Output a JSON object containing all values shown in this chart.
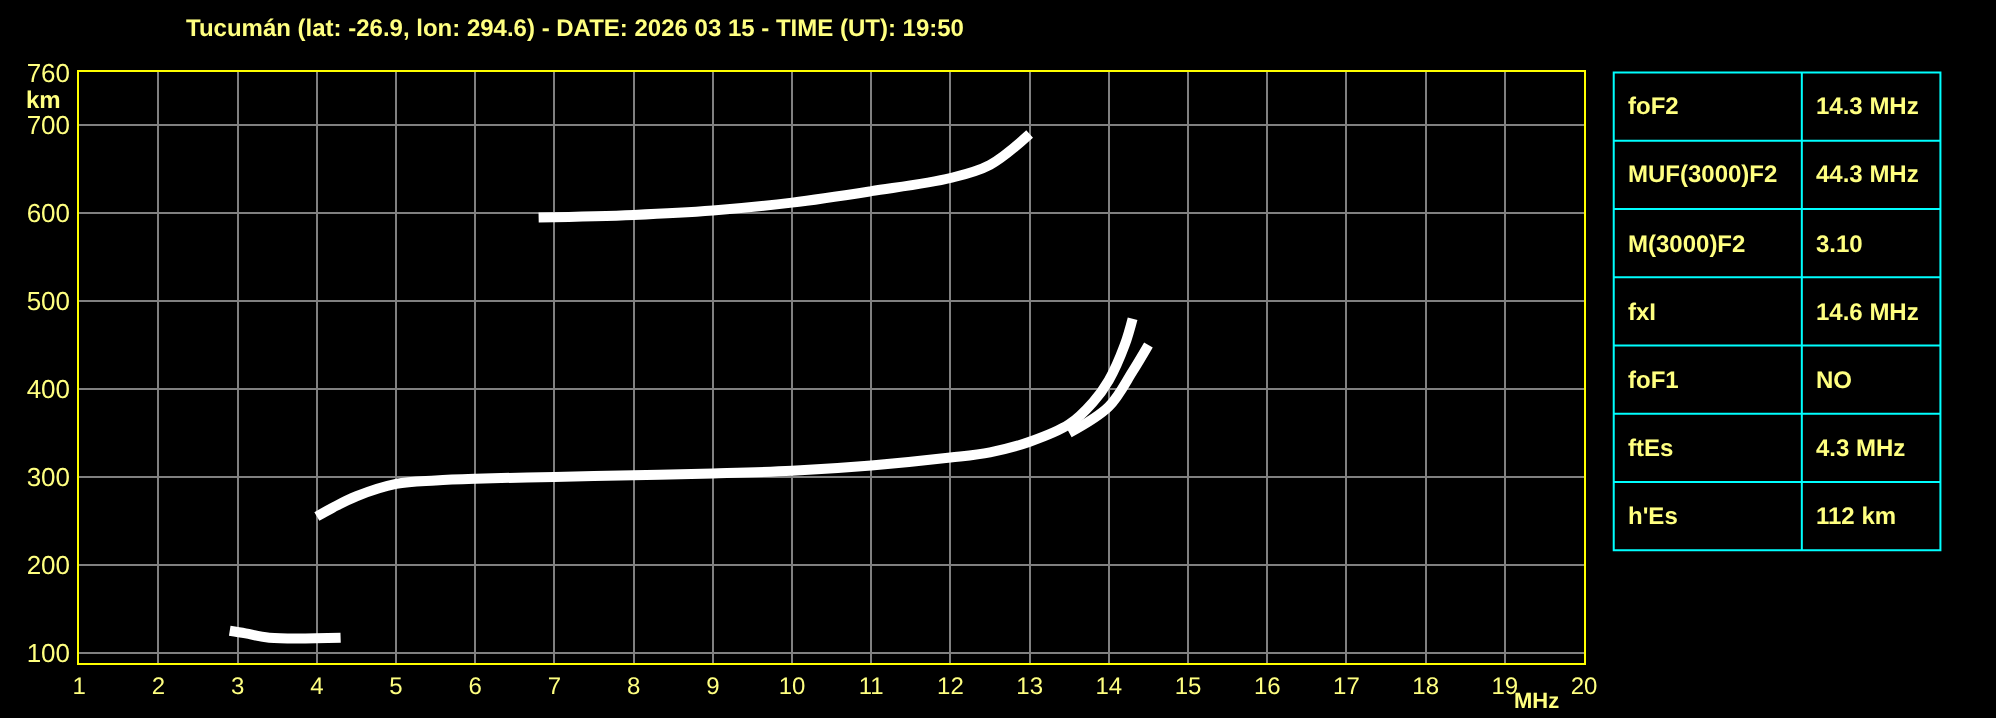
{
  "chart_data": [
    {
      "type": "line",
      "title": "Tucumán (lat: -26.9, lon: 294.6) - DATE: 2026 03 15 - TIME (UT): 19:50",
      "xlabel": "MHz",
      "ylabel": "km",
      "xlim": [
        1,
        20
      ],
      "xticks": [
        1,
        2,
        3,
        4,
        5,
        6,
        7,
        8,
        9,
        10,
        11,
        12,
        13,
        14,
        15,
        16,
        17,
        18,
        19,
        20
      ],
      "ylim": [
        88,
        760
      ],
      "yticks": [
        100,
        200,
        300,
        400,
        500,
        600,
        700,
        760
      ],
      "grid": true,
      "line_style": "solid",
      "series": [
        {
          "color": "#ffffff",
          "x": [
            2.9,
            3.1,
            3.4,
            4.3
          ],
          "values": [
            125,
            122,
            117,
            117
          ]
        },
        {
          "color": "#ffffff",
          "x": [
            4.0,
            4.2,
            4.5,
            5,
            5.5,
            6,
            7,
            8,
            9,
            10,
            11,
            12,
            12.5,
            13,
            13.5,
            13.8,
            14.0,
            14.2,
            14.3
          ],
          "values": [
            255,
            265,
            278,
            292,
            296,
            298,
            300,
            302,
            304,
            307,
            313,
            322,
            328,
            340,
            360,
            385,
            410,
            450,
            480
          ]
        },
        {
          "color": "#ffffff",
          "x": [
            13.5,
            14.0,
            14.3,
            14.5
          ],
          "values": [
            350,
            380,
            420,
            450
          ]
        },
        {
          "color": "#ffffff",
          "x": [
            6.8,
            8,
            9,
            10,
            11,
            12,
            12.5,
            13.0
          ],
          "values": [
            595,
            598,
            603,
            612,
            625,
            640,
            655,
            690
          ]
        }
      ]
    },
    {
      "type": "other",
      "categories": [
        "foF2",
        "MUF(3000)F2",
        "M(3000)F2",
        "fxI",
        "foF1",
        "ftEs",
        "h'Es"
      ],
      "value_labels": [
        "14.3 MHz",
        "44.3 MHz",
        "3.10",
        "14.6 MHz",
        "NO",
        "4.3 MHz",
        "112 km"
      ]
    }
  ]
}
